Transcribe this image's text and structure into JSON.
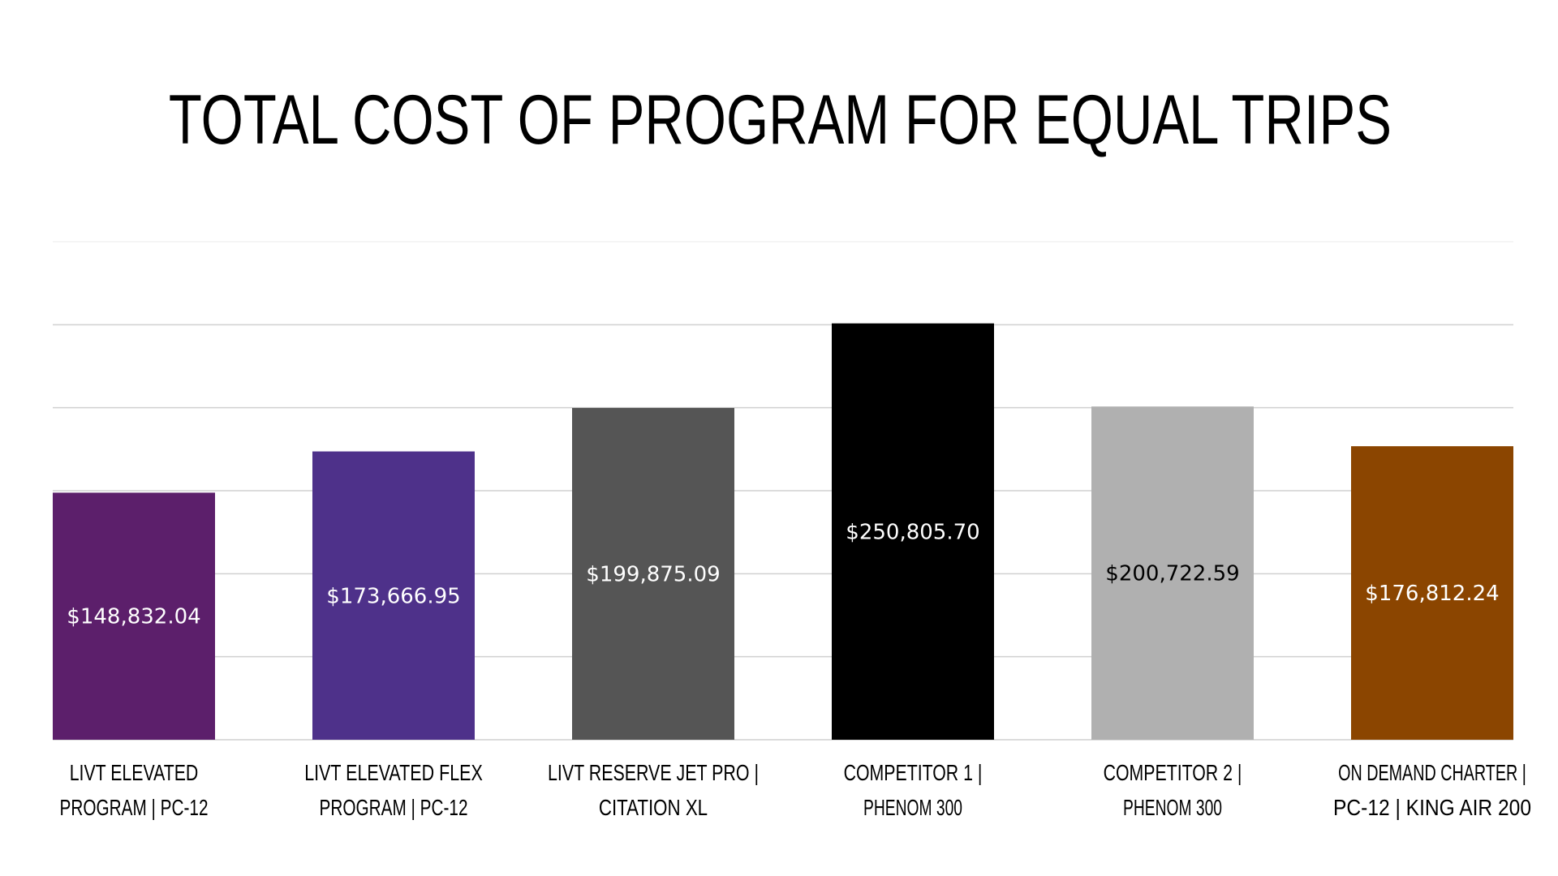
{
  "chart_data": {
    "type": "bar",
    "title": "TOTAL COST OF PROGRAM FOR EQUAL TRIPS",
    "xlabel": "",
    "ylabel": "",
    "ylim": [
      0,
      300000
    ],
    "grid": true,
    "categories": [
      [
        "LIVT ELEVATED",
        "PROGRAM | PC-12"
      ],
      [
        "LIVT ELEVATED FLEX",
        "PROGRAM | PC-12"
      ],
      [
        "LIVT RESERVE JET PRO |",
        "CITATION XL"
      ],
      [
        "COMPETITOR 1 |",
        "PHENOM 300"
      ],
      [
        "COMPETITOR 2 |",
        "PHENOM 300"
      ],
      [
        "ON DEMAND CHARTER |",
        "PC-12 | KING AIR 200"
      ]
    ],
    "values": [
      148832.04,
      173666.95,
      199875.09,
      250805.7,
      200722.59,
      176812.24
    ],
    "data_labels": [
      "$148,832.04",
      "$173,666.95",
      "$199,875.09",
      "$250,805.70",
      "$200,722.59",
      "$176,812.24"
    ],
    "colors": [
      "#5c1f6b",
      "#4e318a",
      "#555555",
      "#000000",
      "#b0b0b0",
      "#8b4500"
    ],
    "label_colors": [
      "#ffffff",
      "#ffffff",
      "#ffffff",
      "#ffffff",
      "#000000",
      "#ffffff"
    ]
  }
}
